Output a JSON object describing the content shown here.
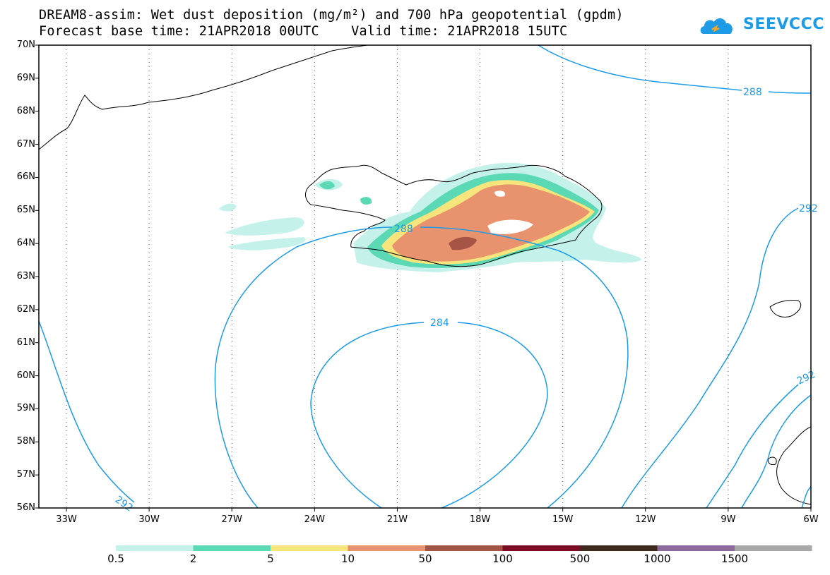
{
  "title": {
    "line1": "DREAM8-assim: Wet dust deposition (mg/m²) and 700 hPa geopotential (gpdm)",
    "line2": "Forecast base time: 21APR2018 00UTC    Valid time: 21APR2018 15UTC"
  },
  "logo": {
    "text": "SEEVCCC",
    "icon": "cloud-icon",
    "color": "#1e9be6"
  },
  "latitude_labels": [
    "70N",
    "69N",
    "68N",
    "67N",
    "66N",
    "65N",
    "64N",
    "63N",
    "62N",
    "61N",
    "60N",
    "59N",
    "58N",
    "57N",
    "56N"
  ],
  "longitude_labels": [
    "33W",
    "30W",
    "27W",
    "24W",
    "21W",
    "18W",
    "15W",
    "12W",
    "9W",
    "6W"
  ],
  "contours": {
    "color": "#1e9be6",
    "labels": [
      "288",
      "288",
      "284",
      "292",
      "292",
      "292"
    ]
  },
  "colorbar": {
    "labels": [
      "0.5",
      "2",
      "5",
      "10",
      "50",
      "100",
      "500",
      "1000",
      "1500"
    ],
    "colors": [
      "#c4f2ea",
      "#5ad9b4",
      "#f6e47c",
      "#e8936e",
      "#a65446",
      "#7a0d24",
      "#3d2a1c",
      "#8c6a9c",
      "#a8a8a8"
    ]
  }
}
